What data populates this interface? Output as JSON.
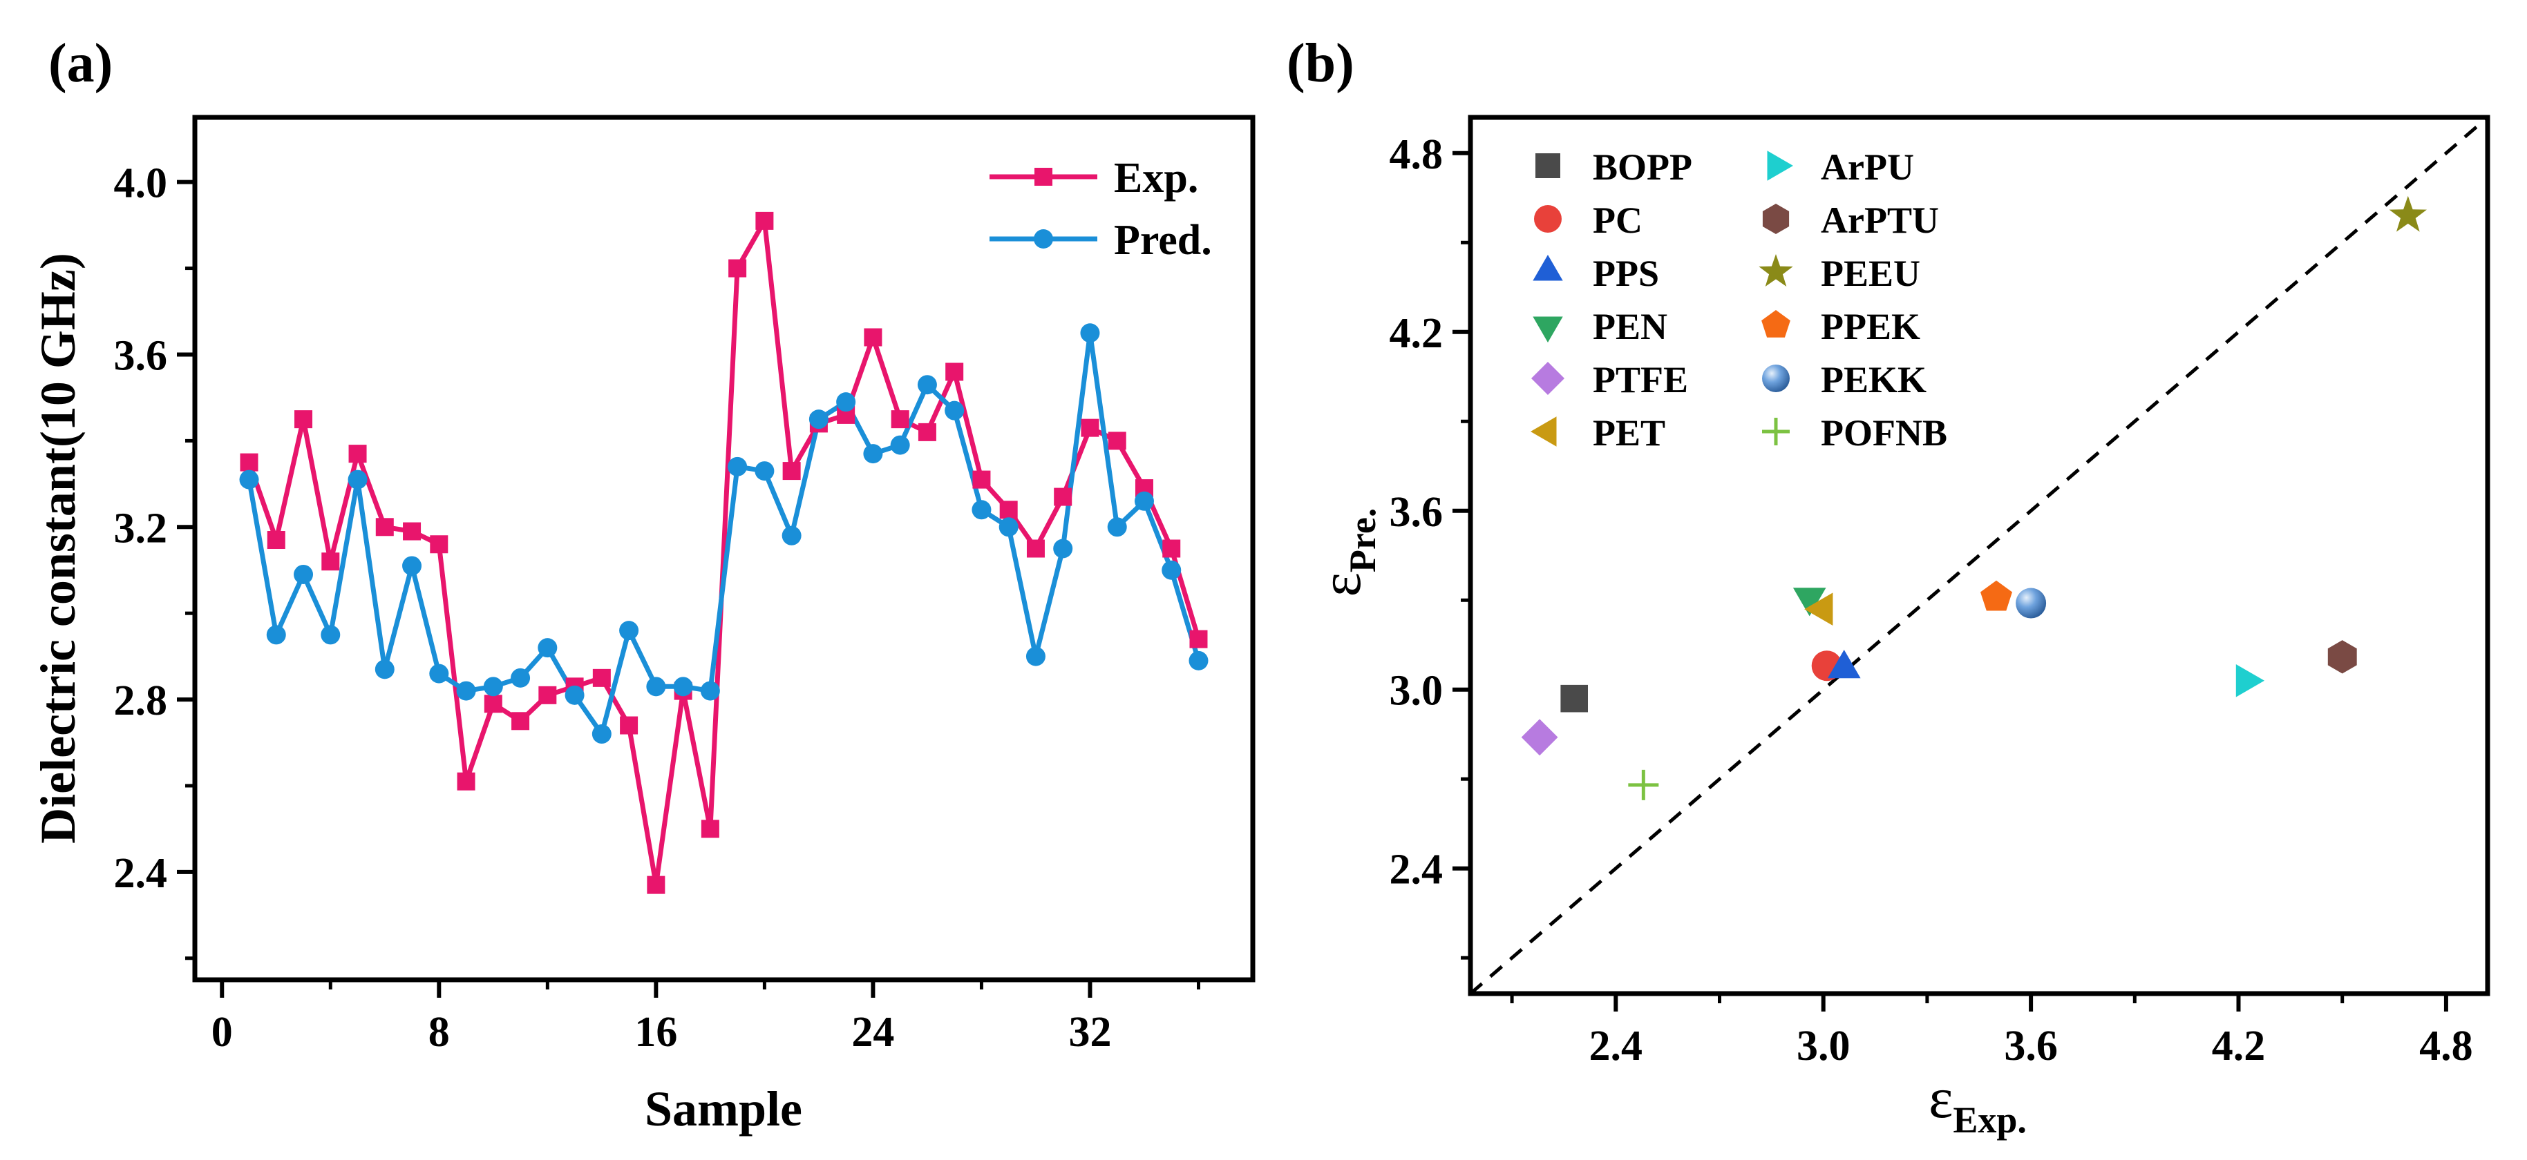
{
  "chart_data": [
    {
      "panel_label": "(a)",
      "type": "line",
      "xlabel": "Sample",
      "ylabel": "Dielectric constant(10 GHz)",
      "xlim": [
        -1,
        38
      ],
      "ylim": [
        2.15,
        4.15
      ],
      "xticks": [
        0,
        8,
        16,
        24,
        32
      ],
      "yticks": [
        2.4,
        2.8,
        3.2,
        3.6,
        4.0
      ],
      "xtick_labels": [
        "0",
        "8",
        "16",
        "24",
        "32"
      ],
      "ytick_labels": [
        "2.4",
        "2.8",
        "3.2",
        "3.6",
        "4.0"
      ],
      "legend_position": "top-right",
      "x": [
        1,
        2,
        3,
        4,
        5,
        6,
        7,
        8,
        9,
        10,
        11,
        12,
        13,
        14,
        15,
        16,
        17,
        18,
        19,
        20,
        21,
        22,
        23,
        24,
        25,
        26,
        27,
        28,
        29,
        30,
        31,
        32,
        33,
        34,
        35,
        36
      ],
      "series": [
        {
          "name": "Exp.",
          "color": "#e8156c",
          "marker": "square",
          "values": [
            3.35,
            3.17,
            3.45,
            3.12,
            3.37,
            3.2,
            3.19,
            3.16,
            2.61,
            2.79,
            2.75,
            2.81,
            2.83,
            2.85,
            2.74,
            2.37,
            2.82,
            2.5,
            3.8,
            3.91,
            3.33,
            3.44,
            3.46,
            3.64,
            3.45,
            3.42,
            3.56,
            3.31,
            3.24,
            3.15,
            3.27,
            3.43,
            3.4,
            3.29,
            3.15,
            2.94
          ]
        },
        {
          "name": "Pred.",
          "color": "#1a8fd8",
          "marker": "circle",
          "values": [
            3.31,
            2.95,
            3.09,
            2.95,
            3.31,
            2.87,
            3.11,
            2.86,
            2.82,
            2.83,
            2.85,
            2.92,
            2.81,
            2.72,
            2.96,
            2.83,
            2.83,
            2.82,
            3.34,
            3.33,
            3.18,
            3.45,
            3.49,
            3.37,
            3.39,
            3.53,
            3.47,
            3.24,
            3.2,
            2.9,
            3.15,
            3.65,
            3.2,
            3.26,
            3.1,
            2.89
          ]
        }
      ]
    },
    {
      "panel_label": "(b)",
      "type": "scatter",
      "xlabel_main": "ε",
      "xlabel_sub": "Exp.",
      "ylabel_main": "ε",
      "ylabel_sub": "Pre.",
      "xlim": [
        1.98,
        4.92
      ],
      "ylim": [
        1.98,
        4.92
      ],
      "xticks": [
        2.4,
        3.0,
        3.6,
        4.2,
        4.8
      ],
      "yticks": [
        2.4,
        3.0,
        3.6,
        4.2,
        4.8
      ],
      "xtick_labels": [
        "2.4",
        "3.0",
        "3.6",
        "4.2",
        "4.8"
      ],
      "ytick_labels": [
        "2.4",
        "3.0",
        "3.6",
        "4.2",
        "4.8"
      ],
      "reference_line": "y = x (dashed)",
      "legend_position": "top-left",
      "points": [
        {
          "name": "BOPP",
          "x": 2.28,
          "y": 2.97,
          "marker": "square",
          "color": "#4a4a4a"
        },
        {
          "name": "PC",
          "x": 3.01,
          "y": 3.08,
          "marker": "circle",
          "color": "#e8413a"
        },
        {
          "name": "PPS",
          "x": 3.06,
          "y": 3.07,
          "marker": "triangle-up",
          "color": "#1f5fd6"
        },
        {
          "name": "PEN",
          "x": 2.96,
          "y": 3.31,
          "marker": "triangle-down",
          "color": "#2ea661"
        },
        {
          "name": "PTFE",
          "x": 2.18,
          "y": 2.84,
          "marker": "diamond",
          "color": "#b77be0"
        },
        {
          "name": "PET",
          "x": 3.0,
          "y": 3.27,
          "marker": "triangle-left",
          "color": "#c99a12"
        },
        {
          "name": "ArPU",
          "x": 4.22,
          "y": 3.03,
          "marker": "triangle-right",
          "color": "#1ecfcf"
        },
        {
          "name": "ArPTU",
          "x": 4.5,
          "y": 3.11,
          "marker": "hexagon",
          "color": "#7a4a44"
        },
        {
          "name": "PEEU",
          "x": 4.69,
          "y": 4.59,
          "marker": "star",
          "color": "#8a8a18"
        },
        {
          "name": "PPEK",
          "x": 3.5,
          "y": 3.31,
          "marker": "pentagon",
          "color": "#f56a14"
        },
        {
          "name": "PEKK",
          "x": 3.6,
          "y": 3.29,
          "marker": "sphere",
          "color": "#5b93d6"
        },
        {
          "name": "POFNB",
          "x": 2.48,
          "y": 2.68,
          "marker": "plus",
          "color": "#7cc242"
        }
      ]
    }
  ]
}
